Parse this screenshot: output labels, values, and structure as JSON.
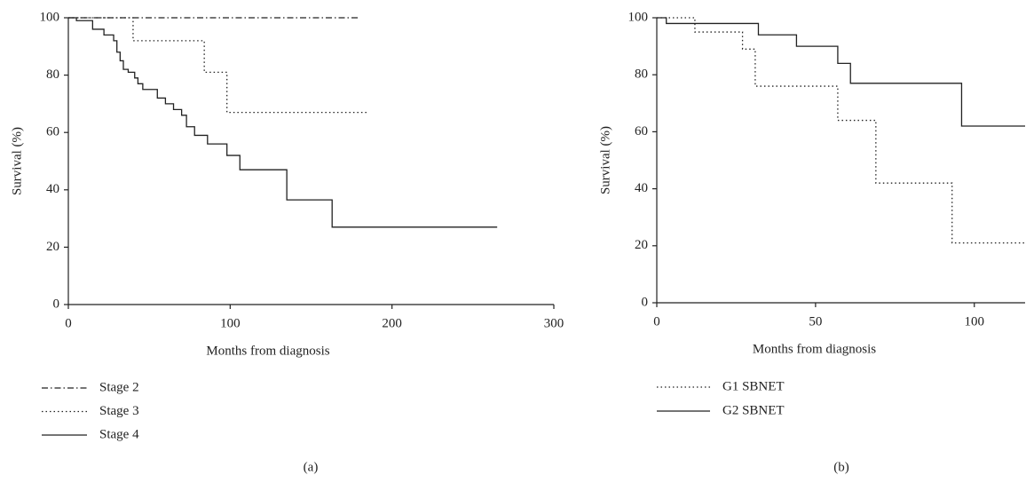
{
  "chart_data": [
    {
      "type": "step",
      "label": "(a)",
      "xlabel": "Months from diagnosis",
      "ylabel": "Survival (%)",
      "xlim": [
        0,
        300
      ],
      "xticks": [
        0,
        100,
        200,
        300
      ],
      "ylim": [
        0,
        100
      ],
      "yticks": [
        0,
        20,
        40,
        60,
        80,
        100
      ],
      "legend": "below",
      "series": [
        {
          "name": "Stage 2",
          "color": "#222222",
          "dash": "dashdot",
          "x": [
            0,
            180
          ],
          "values": [
            100,
            100
          ]
        },
        {
          "name": "Stage 3",
          "color": "#222222",
          "dash": "dotted",
          "x": [
            0,
            40,
            84,
            98,
            185
          ],
          "values": [
            100,
            92,
            81,
            67,
            67
          ]
        },
        {
          "name": "Stage 4",
          "color": "#222222",
          "dash": "solid",
          "x": [
            0,
            5,
            15,
            22,
            28,
            30,
            32,
            34,
            37,
            41,
            43,
            46,
            55,
            60,
            65,
            70,
            73,
            78,
            86,
            98,
            106,
            135,
            163,
            265
          ],
          "values": [
            100,
            99,
            96,
            94,
            92,
            88,
            85,
            82,
            81,
            79,
            77,
            75,
            72,
            70,
            68,
            66,
            62,
            59,
            56,
            52,
            47,
            36.5,
            27,
            27
          ]
        }
      ]
    },
    {
      "type": "step",
      "label": "(b)",
      "xlabel": "Months from diagnosis",
      "ylabel": "Survival (%)",
      "xlim": [
        0,
        116
      ],
      "xticks": [
        0,
        50,
        100
      ],
      "ylim": [
        0,
        100
      ],
      "yticks": [
        0,
        20,
        40,
        60,
        80,
        100
      ],
      "legend": "below",
      "series": [
        {
          "name": "G1 SBNET",
          "color": "#222222",
          "dash": "dotted",
          "x": [
            0,
            12,
            27,
            31,
            57,
            69,
            93,
            116
          ],
          "values": [
            100,
            95,
            89,
            76,
            64,
            42,
            21,
            21
          ]
        },
        {
          "name": "G2 SBNET",
          "color": "#222222",
          "dash": "solid",
          "x": [
            0,
            3,
            32,
            44,
            57,
            61,
            96,
            116
          ],
          "values": [
            100,
            98,
            94,
            90,
            84,
            77,
            62,
            62
          ]
        }
      ]
    }
  ]
}
